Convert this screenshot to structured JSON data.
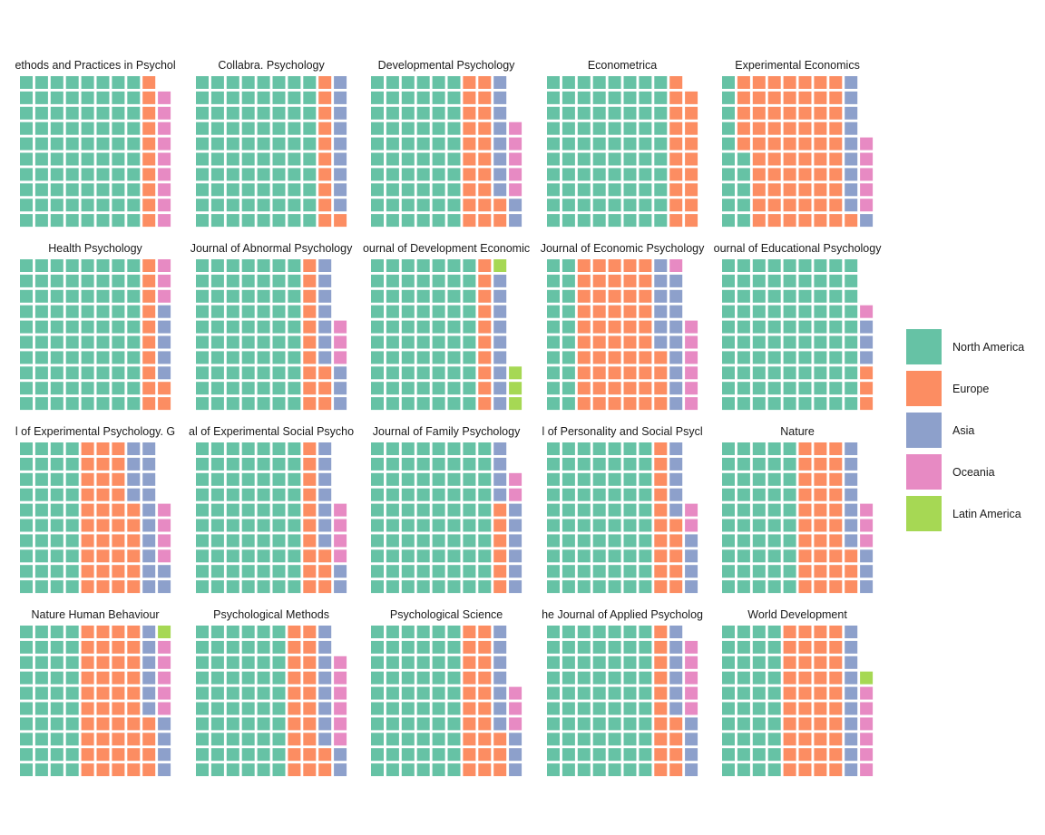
{
  "chart_data": {
    "type": "waffle",
    "grid": {
      "columns": 10,
      "rows": 10,
      "fill_order": "column-major, bottom-to-top"
    },
    "legend": {
      "position": "right"
    },
    "categories": [
      "North America",
      "Europe",
      "Asia",
      "Oceania",
      "Latin America"
    ],
    "colors": {
      "North America": "#66C2A5",
      "Europe": "#FC8D62",
      "Asia": "#8DA0CB",
      "Oceania": "#E78AC3",
      "Latin America": "#A6D854"
    },
    "panels": [
      {
        "title": "Advances in Methods and Practices in Psychological Science",
        "shown_title": "ethods and Practices in Psychol",
        "values": {
          "North America": 80,
          "Europe": 10,
          "Asia": 0,
          "Oceania": 9,
          "Latin America": 0
        }
      },
      {
        "title": "Collabra. Psychology",
        "shown_title": "Collabra. Psychology",
        "values": {
          "North America": 80,
          "Europe": 11,
          "Asia": 9,
          "Oceania": 0,
          "Latin America": 0
        }
      },
      {
        "title": "Developmental Psychology",
        "shown_title": "Developmental Psychology",
        "values": {
          "North America": 60,
          "Europe": 22,
          "Asia": 10,
          "Oceania": 5,
          "Latin America": 0
        }
      },
      {
        "title": "Econometrica",
        "shown_title": "Econometrica",
        "values": {
          "North America": 80,
          "Europe": 19,
          "Asia": 0,
          "Oceania": 0,
          "Latin America": 0
        }
      },
      {
        "title": "Experimental Economics",
        "shown_title": "Experimental Economics",
        "values": {
          "North America": 15,
          "Europe": 66,
          "Asia": 10,
          "Oceania": 5,
          "Latin America": 0
        }
      },
      {
        "title": "Health Psychology",
        "shown_title": "Health Psychology",
        "values": {
          "North America": 80,
          "Europe": 12,
          "Asia": 5,
          "Oceania": 3,
          "Latin America": 0
        }
      },
      {
        "title": "Journal of Abnormal Psychology",
        "shown_title": "Journal of Abnormal Psychology",
        "values": {
          "North America": 70,
          "Europe": 13,
          "Asia": 10,
          "Oceania": 3,
          "Latin America": 0
        }
      },
      {
        "title": "Journal of Development Economics",
        "shown_title": "ournal of Development Economic",
        "values": {
          "North America": 70,
          "Europe": 10,
          "Asia": 9,
          "Oceania": 0,
          "Latin America": 4
        }
      },
      {
        "title": "Journal of Economic Psychology",
        "shown_title": "Journal of Economic Psychology",
        "values": {
          "North America": 20,
          "Europe": 54,
          "Asia": 15,
          "Oceania": 7,
          "Latin America": 0
        }
      },
      {
        "title": "Journal of Educational Psychology",
        "shown_title": "ournal of Educational Psychology",
        "values": {
          "North America": 90,
          "Europe": 3,
          "Asia": 3,
          "Oceania": 1,
          "Latin America": 0
        }
      },
      {
        "title": "Journal of Experimental Psychology. General",
        "shown_title": "l of Experimental Psychology. G",
        "values": {
          "North America": 40,
          "Europe": 36,
          "Asia": 16,
          "Oceania": 4,
          "Latin America": 0
        }
      },
      {
        "title": "Journal of Experimental Social Psychology",
        "shown_title": "al of Experimental Social Psycho",
        "values": {
          "North America": 70,
          "Europe": 13,
          "Asia": 9,
          "Oceania": 4,
          "Latin America": 0
        }
      },
      {
        "title": "Journal of Family Psychology",
        "shown_title": "Journal of Family Psychology",
        "values": {
          "North America": 80,
          "Europe": 6,
          "Asia": 10,
          "Oceania": 2,
          "Latin America": 0
        }
      },
      {
        "title": "Journal of Personality and Social Psychology",
        "shown_title": "l of Personality and Social Psycl",
        "values": {
          "North America": 70,
          "Europe": 15,
          "Asia": 9,
          "Oceania": 2,
          "Latin America": 0
        }
      },
      {
        "title": "Nature",
        "shown_title": "Nature",
        "values": {
          "North America": 50,
          "Europe": 33,
          "Asia": 10,
          "Oceania": 3,
          "Latin America": 0
        }
      },
      {
        "title": "Nature Human Behaviour",
        "shown_title": "Nature Human Behaviour",
        "values": {
          "North America": 40,
          "Europe": 44,
          "Asia": 10,
          "Oceania": 5,
          "Latin America": 1
        }
      },
      {
        "title": "Psychological Methods",
        "shown_title": "Psychological Methods",
        "values": {
          "North America": 60,
          "Europe": 22,
          "Asia": 10,
          "Oceania": 6,
          "Latin America": 0
        }
      },
      {
        "title": "Psychological Science",
        "shown_title": "Psychological Science",
        "values": {
          "North America": 60,
          "Europe": 23,
          "Asia": 10,
          "Oceania": 3,
          "Latin America": 0
        }
      },
      {
        "title": "The Journal of Applied Psychology",
        "shown_title": "he Journal of Applied Psycholog",
        "values": {
          "North America": 70,
          "Europe": 14,
          "Asia": 10,
          "Oceania": 5,
          "Latin America": 0
        }
      },
      {
        "title": "World Development",
        "shown_title": "World Development",
        "values": {
          "North America": 40,
          "Europe": 40,
          "Asia": 10,
          "Oceania": 6,
          "Latin America": 1
        }
      }
    ]
  }
}
